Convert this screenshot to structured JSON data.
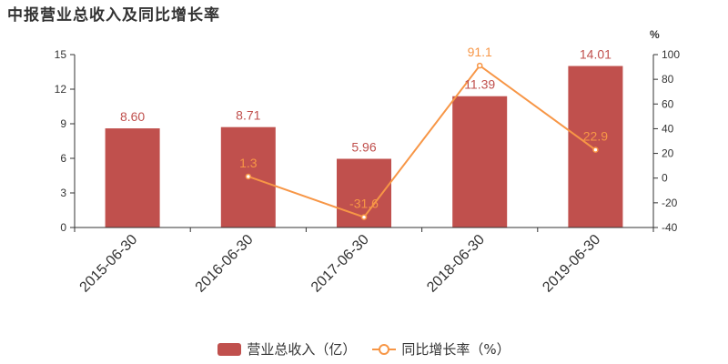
{
  "title": "中报营业总收入及同比增长率",
  "colors": {
    "bar": "#c0504d",
    "line": "#f79646",
    "axis": "#333333",
    "text": "#333333"
  },
  "chart_data": {
    "type": "bar",
    "categories": [
      "2015-06-30",
      "2016-06-30",
      "2017-06-30",
      "2018-06-30",
      "2019-06-30"
    ],
    "series": [
      {
        "name": "营业总收入（亿）",
        "type": "bar",
        "axis": "left",
        "values": [
          8.6,
          8.71,
          5.96,
          11.39,
          14.01
        ],
        "labels": [
          "8.60",
          "8.71",
          "5.96",
          "11.39",
          "14.01"
        ]
      },
      {
        "name": "同比增长率（%）",
        "type": "line",
        "axis": "right",
        "values": [
          null,
          1.3,
          -31.6,
          91.1,
          22.9
        ],
        "labels": [
          "",
          "1.3",
          "-31.6",
          "91.1",
          "22.9"
        ]
      }
    ],
    "y_left": {
      "ylim": [
        0,
        15
      ],
      "ticks": [
        "0",
        "3",
        "6",
        "9",
        "12",
        "15"
      ]
    },
    "y_right": {
      "unit": "%",
      "ylim": [
        -40,
        100
      ],
      "ticks": [
        "-40",
        "-20",
        "0",
        "20",
        "40",
        "60",
        "80",
        "100"
      ]
    },
    "grid": false,
    "legend": "bottom"
  }
}
